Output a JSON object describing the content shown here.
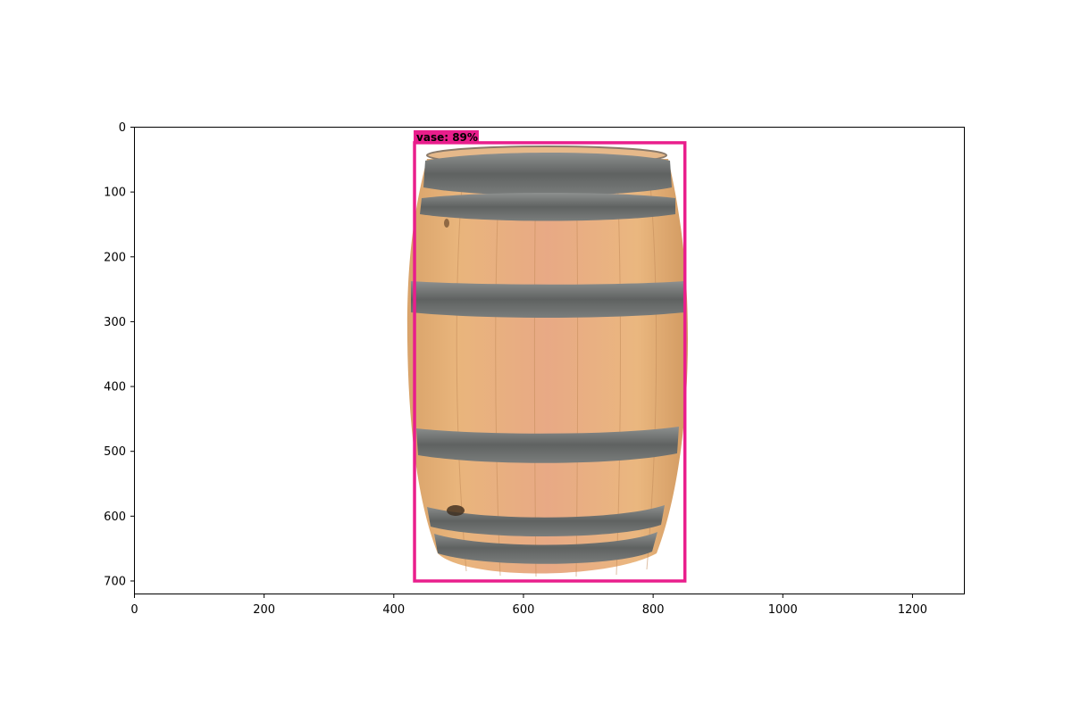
{
  "figure": {
    "x_ticks": [
      "0",
      "200",
      "400",
      "600",
      "800",
      "1000",
      "1200"
    ],
    "y_ticks": [
      "0",
      "100",
      "200",
      "300",
      "400",
      "500",
      "600",
      "700"
    ]
  },
  "image": {
    "subject": "wooden wine barrel with metal hoops on white background",
    "width_units": 1280,
    "height_units": 720
  },
  "detection": {
    "label": "vase: 89%",
    "class": "vase",
    "score": 0.89,
    "box": {
      "x_min": 432,
      "y_min": 24,
      "x_max": 849,
      "y_max": 700
    },
    "color": "#e91e8c"
  },
  "colors": {
    "box": "#e91e8c",
    "wood_light": "#e9b47a",
    "wood_dark": "#c98a56",
    "hoop": "#6e7170",
    "axis": "#000000"
  }
}
